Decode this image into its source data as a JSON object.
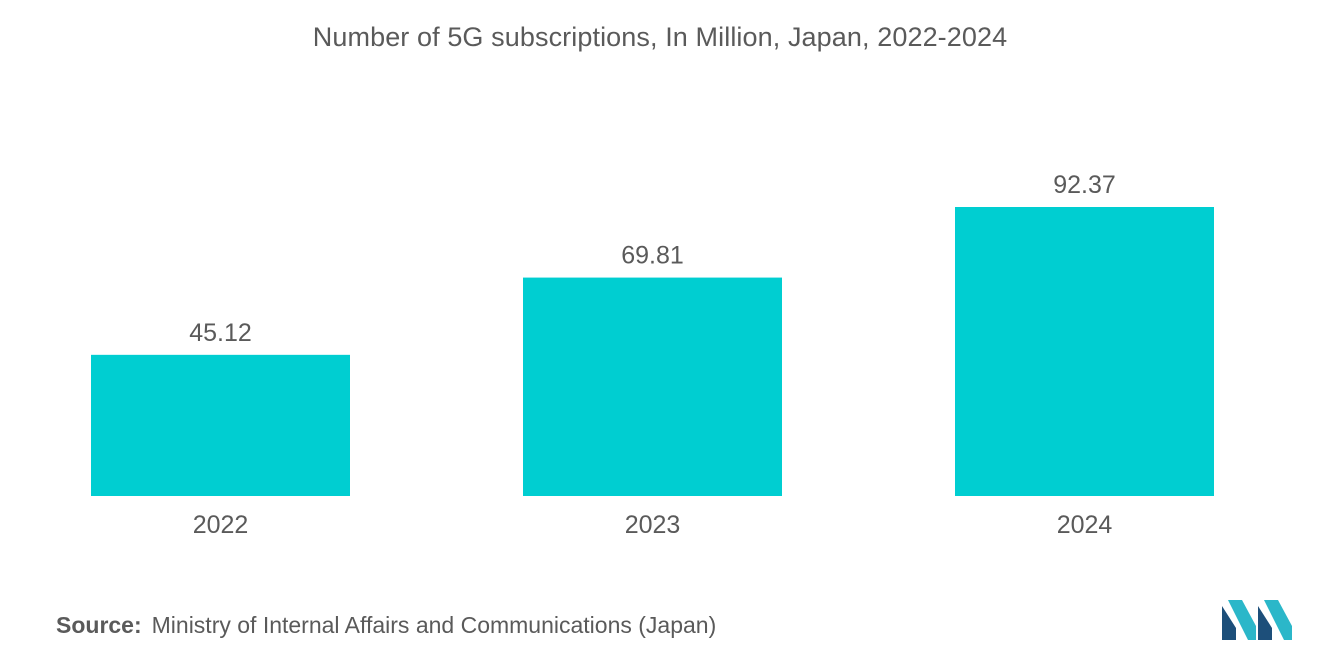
{
  "chart_data": {
    "type": "bar",
    "title": "Number of 5G subscriptions, In Million, Japan, 2022-2024",
    "categories": [
      "2022",
      "2023",
      "2024"
    ],
    "values": [
      45.12,
      69.81,
      92.37
    ],
    "value_labels": [
      "45.12",
      "69.81",
      "92.37"
    ],
    "xlabel": "",
    "ylabel": "",
    "ylim": [
      0,
      100
    ],
    "grid": false,
    "legend": "none"
  },
  "colors": {
    "bar": "#00ced1",
    "text": "#5a5a5a",
    "logo_dark": "#1d4f7a",
    "logo_light": "#2bb7c9"
  },
  "source": {
    "label": "Source:",
    "text": "Ministry of Internal Affairs and Communications (Japan)"
  },
  "logo": {
    "icon": "mordor-intelligence-logo-icon"
  }
}
